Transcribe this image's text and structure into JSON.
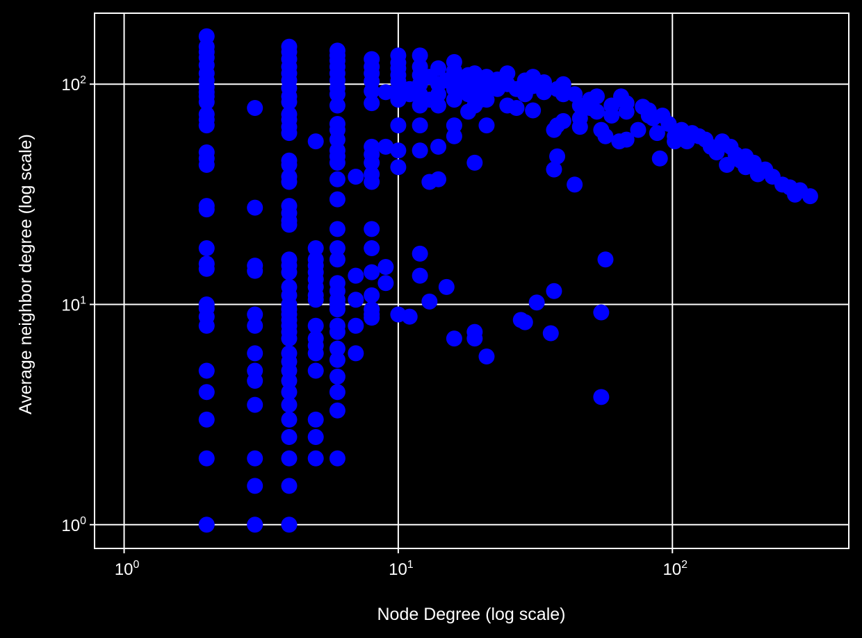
{
  "colors": {
    "background": "#000000",
    "axes": "#ffffff",
    "grid": "#ffffff",
    "markers": "#0000ff",
    "text": "#ffffff"
  },
  "chart_data": {
    "type": "scatter",
    "title": "",
    "xlabel": "Node Degree (log scale)",
    "ylabel": "Average neighbor degree (log scale)",
    "xscale": "log",
    "yscale": "log",
    "xlim": [
      0.78,
      440
    ],
    "ylim": [
      0.78,
      210
    ],
    "grid": true,
    "legend": "none",
    "x_ticks": [
      {
        "base": "10",
        "exp": "0",
        "value": 1
      },
      {
        "base": "10",
        "exp": "1",
        "value": 10
      },
      {
        "base": "10",
        "exp": "2",
        "value": 100
      }
    ],
    "y_ticks": [
      {
        "base": "10",
        "exp": "0",
        "value": 1
      },
      {
        "base": "10",
        "exp": "1",
        "value": 10
      },
      {
        "base": "10",
        "exp": "2",
        "value": 100
      }
    ],
    "series": [
      {
        "points": [
          [
            2,
            165
          ],
          [
            2,
            148
          ],
          [
            2,
            140
          ],
          [
            2,
            132
          ],
          [
            2,
            122
          ],
          [
            2,
            112
          ],
          [
            2,
            104
          ],
          [
            2,
            97
          ],
          [
            2,
            92
          ],
          [
            2,
            88
          ],
          [
            2,
            83
          ],
          [
            2,
            73
          ],
          [
            2,
            69
          ],
          [
            2,
            65
          ],
          [
            2,
            49
          ],
          [
            2,
            46
          ],
          [
            2,
            43
          ],
          [
            2,
            28
          ],
          [
            2,
            27
          ],
          [
            2,
            18
          ],
          [
            2,
            15.3
          ],
          [
            2,
            14.5
          ],
          [
            2,
            10
          ],
          [
            2,
            9.6
          ],
          [
            2,
            8.8
          ],
          [
            2,
            8
          ],
          [
            2,
            5
          ],
          [
            2,
            4
          ],
          [
            2,
            3
          ],
          [
            2,
            2
          ],
          [
            2,
            1
          ],
          [
            3,
            78
          ],
          [
            3,
            27.5
          ],
          [
            3,
            15
          ],
          [
            3,
            14.2
          ],
          [
            3,
            9
          ],
          [
            3,
            8
          ],
          [
            3,
            6
          ],
          [
            3,
            5
          ],
          [
            3,
            4.5
          ],
          [
            3,
            3.5
          ],
          [
            3,
            2
          ],
          [
            3,
            1.5
          ],
          [
            3,
            1
          ],
          [
            4,
            148
          ],
          [
            4,
            140
          ],
          [
            4,
            130
          ],
          [
            4,
            120
          ],
          [
            4,
            112
          ],
          [
            4,
            104
          ],
          [
            4,
            96
          ],
          [
            4,
            88
          ],
          [
            4,
            83
          ],
          [
            4,
            73
          ],
          [
            4,
            69
          ],
          [
            4,
            64
          ],
          [
            4,
            60
          ],
          [
            4,
            45
          ],
          [
            4,
            43
          ],
          [
            4,
            38
          ],
          [
            4,
            36
          ],
          [
            4,
            28
          ],
          [
            4,
            26
          ],
          [
            4,
            24
          ],
          [
            4,
            23
          ],
          [
            4,
            16
          ],
          [
            4,
            15
          ],
          [
            4,
            14
          ],
          [
            4,
            12
          ],
          [
            4,
            11
          ],
          [
            4,
            10
          ],
          [
            4,
            9.5
          ],
          [
            4,
            9
          ],
          [
            4,
            8.5
          ],
          [
            4,
            8
          ],
          [
            4,
            7.5
          ],
          [
            4,
            7
          ],
          [
            4,
            6
          ],
          [
            4,
            5.5
          ],
          [
            4,
            5
          ],
          [
            4,
            4.5
          ],
          [
            4,
            4
          ],
          [
            4,
            3.5
          ],
          [
            4,
            3
          ],
          [
            4,
            2.5
          ],
          [
            4,
            2
          ],
          [
            4,
            1.5
          ],
          [
            4,
            1
          ],
          [
            5,
            55
          ],
          [
            5,
            18
          ],
          [
            5,
            16
          ],
          [
            5,
            15
          ],
          [
            5,
            14
          ],
          [
            5,
            13
          ],
          [
            5,
            12
          ],
          [
            5,
            11
          ],
          [
            5,
            10.5
          ],
          [
            5,
            8
          ],
          [
            5,
            7
          ],
          [
            5,
            6.5
          ],
          [
            5,
            6
          ],
          [
            5,
            5
          ],
          [
            5,
            3
          ],
          [
            5,
            2.5
          ],
          [
            5,
            2
          ],
          [
            6,
            142
          ],
          [
            6,
            135
          ],
          [
            6,
            128
          ],
          [
            6,
            120
          ],
          [
            6,
            112
          ],
          [
            6,
            104
          ],
          [
            6,
            96
          ],
          [
            6,
            90
          ],
          [
            6,
            80
          ],
          [
            6,
            66
          ],
          [
            6,
            62
          ],
          [
            6,
            56
          ],
          [
            6,
            50
          ],
          [
            6,
            47
          ],
          [
            6,
            44
          ],
          [
            6,
            37
          ],
          [
            6,
            30
          ],
          [
            6,
            22
          ],
          [
            6,
            18
          ],
          [
            6,
            16
          ],
          [
            6,
            12.5
          ],
          [
            6,
            11.5
          ],
          [
            6,
            10.5
          ],
          [
            6,
            10
          ],
          [
            6,
            9.5
          ],
          [
            6,
            8
          ],
          [
            6,
            7.5
          ],
          [
            6,
            6.3
          ],
          [
            6,
            5.6
          ],
          [
            6,
            4.7
          ],
          [
            6,
            4
          ],
          [
            6,
            3.3
          ],
          [
            6,
            2
          ],
          [
            7,
            38
          ],
          [
            7,
            13.5
          ],
          [
            7,
            10.5
          ],
          [
            7,
            8
          ],
          [
            7,
            6
          ],
          [
            8,
            130
          ],
          [
            8,
            120
          ],
          [
            8,
            112
          ],
          [
            8,
            103
          ],
          [
            8,
            93
          ],
          [
            8,
            82
          ],
          [
            8,
            52
          ],
          [
            8,
            48
          ],
          [
            8,
            44
          ],
          [
            8,
            39
          ],
          [
            8,
            36
          ],
          [
            8,
            22
          ],
          [
            8,
            18
          ],
          [
            8,
            14
          ],
          [
            8,
            11
          ],
          [
            8,
            9.5
          ],
          [
            8,
            9
          ],
          [
            8,
            8.7
          ],
          [
            9,
            92
          ],
          [
            9,
            52
          ],
          [
            9,
            14.8
          ],
          [
            9,
            12.5
          ],
          [
            10,
            135
          ],
          [
            10,
            125
          ],
          [
            10,
            118
          ],
          [
            10,
            110
          ],
          [
            10,
            103
          ],
          [
            10,
            95
          ],
          [
            10,
            90
          ],
          [
            10,
            85
          ],
          [
            10,
            65
          ],
          [
            10,
            50
          ],
          [
            10,
            42
          ],
          [
            10,
            9
          ],
          [
            11,
            95
          ],
          [
            11,
            90
          ],
          [
            11,
            8.8
          ],
          [
            12,
            135
          ],
          [
            12,
            120
          ],
          [
            12,
            110
          ],
          [
            12,
            100
          ],
          [
            12,
            90
          ],
          [
            12,
            80
          ],
          [
            12,
            65
          ],
          [
            12,
            50
          ],
          [
            12,
            17
          ],
          [
            12,
            13.5
          ],
          [
            13,
            108
          ],
          [
            13,
            85
          ],
          [
            13,
            36
          ],
          [
            13,
            10.3
          ],
          [
            14,
            118
          ],
          [
            14,
            100
          ],
          [
            14,
            90
          ],
          [
            14,
            80
          ],
          [
            14,
            52
          ],
          [
            14,
            37
          ],
          [
            15,
            104
          ],
          [
            15,
            12
          ],
          [
            16,
            126
          ],
          [
            16,
            115
          ],
          [
            16,
            95
          ],
          [
            16,
            85
          ],
          [
            16,
            65
          ],
          [
            16,
            58
          ],
          [
            16,
            7
          ],
          [
            17,
            104
          ],
          [
            17,
            95
          ],
          [
            18,
            110
          ],
          [
            18,
            90
          ],
          [
            18,
            75
          ],
          [
            19,
            112
          ],
          [
            19,
            100
          ],
          [
            19,
            80
          ],
          [
            19,
            44
          ],
          [
            19,
            7.5
          ],
          [
            19,
            7
          ],
          [
            20,
            105
          ],
          [
            20,
            95
          ],
          [
            20,
            85
          ],
          [
            21,
            108
          ],
          [
            21,
            95
          ],
          [
            21,
            85
          ],
          [
            21,
            65
          ],
          [
            21,
            5.8
          ],
          [
            23,
            105
          ],
          [
            23,
            95
          ],
          [
            25,
            112
          ],
          [
            25,
            100
          ],
          [
            25,
            80
          ],
          [
            27,
            95
          ],
          [
            27,
            78
          ],
          [
            28,
            8.5
          ],
          [
            29,
            104
          ],
          [
            29,
            90
          ],
          [
            29,
            8.3
          ],
          [
            31,
            108
          ],
          [
            31,
            98
          ],
          [
            31,
            76
          ],
          [
            32,
            10.2
          ],
          [
            34,
            102
          ],
          [
            34,
            92
          ],
          [
            36,
            7.4
          ],
          [
            37,
            11.5
          ],
          [
            37,
            62
          ],
          [
            37,
            41
          ],
          [
            38,
            95
          ],
          [
            38,
            65
          ],
          [
            38,
            47
          ],
          [
            40,
            100
          ],
          [
            40,
            90
          ],
          [
            40,
            68
          ],
          [
            44,
            90
          ],
          [
            44,
            35
          ],
          [
            46,
            80
          ],
          [
            46,
            70
          ],
          [
            46,
            64
          ],
          [
            50,
            85
          ],
          [
            50,
            78
          ],
          [
            53,
            88
          ],
          [
            53,
            75
          ],
          [
            55,
            62
          ],
          [
            55,
            9.2
          ],
          [
            55,
            3.8
          ],
          [
            57,
            58
          ],
          [
            57,
            16
          ],
          [
            60,
            80
          ],
          [
            60,
            72
          ],
          [
            64,
            55
          ],
          [
            65,
            88
          ],
          [
            68,
            82
          ],
          [
            68,
            75
          ],
          [
            68,
            56
          ],
          [
            75,
            62
          ],
          [
            78,
            79
          ],
          [
            82,
            76
          ],
          [
            82,
            72
          ],
          [
            85,
            70
          ],
          [
            88,
            60
          ],
          [
            90,
            46
          ],
          [
            92,
            72
          ],
          [
            97,
            66
          ],
          [
            102,
            58
          ],
          [
            102,
            55
          ],
          [
            108,
            62
          ],
          [
            113,
            55
          ],
          [
            118,
            60
          ],
          [
            125,
            58
          ],
          [
            132,
            56
          ],
          [
            138,
            52
          ],
          [
            145,
            49
          ],
          [
            152,
            55
          ],
          [
            158,
            43
          ],
          [
            163,
            52
          ],
          [
            170,
            48
          ],
          [
            177,
            45
          ],
          [
            185,
            47
          ],
          [
            185,
            42
          ],
          [
            198,
            44
          ],
          [
            205,
            39
          ],
          [
            218,
            41
          ],
          [
            232,
            38
          ],
          [
            252,
            35
          ],
          [
            268,
            34
          ],
          [
            280,
            31.5
          ],
          [
            292,
            33
          ],
          [
            318,
            31
          ]
        ]
      }
    ]
  }
}
